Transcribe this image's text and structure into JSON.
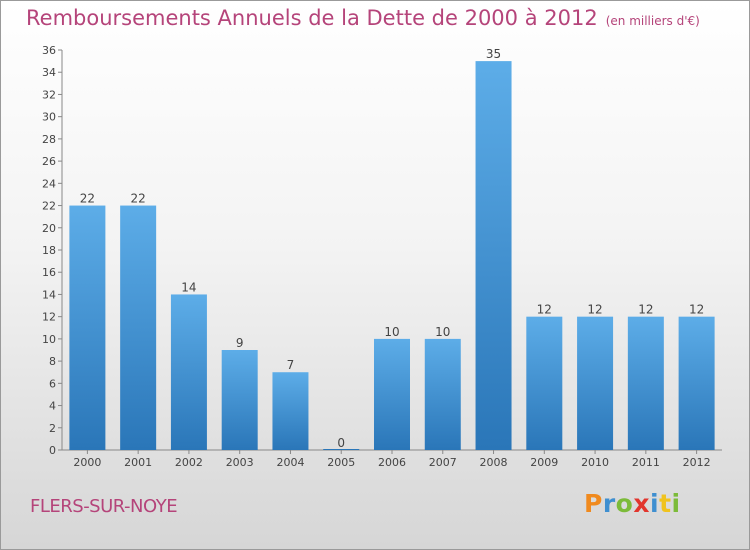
{
  "header": {
    "title": "Remboursements Annuels de la Dette de 2000 à 2012",
    "subtitle": "(en milliers d'€)"
  },
  "footer": {
    "city": "FLERS-SUR-NOYE",
    "logo": "Proxiti"
  },
  "colors": {
    "title": "#b5447a",
    "bar_top": "#5dade8",
    "bar_bottom": "#2a76b8"
  },
  "chart_data": {
    "type": "bar",
    "title": "Remboursements Annuels de la Dette de 2000 à 2012",
    "subtitle": "(en milliers d'€)",
    "categories": [
      "2000",
      "2001",
      "2002",
      "2003",
      "2004",
      "2005",
      "2006",
      "2007",
      "2008",
      "2009",
      "2010",
      "2011",
      "2012"
    ],
    "values": [
      22,
      22,
      14,
      9,
      7,
      0,
      10,
      10,
      35,
      12,
      12,
      12,
      12
    ],
    "ylim": [
      0,
      36
    ],
    "yticks": [
      0,
      2,
      4,
      6,
      8,
      10,
      12,
      14,
      16,
      18,
      20,
      22,
      24,
      26,
      28,
      30,
      32,
      34,
      36
    ],
    "grid": false,
    "data_labels": true
  }
}
